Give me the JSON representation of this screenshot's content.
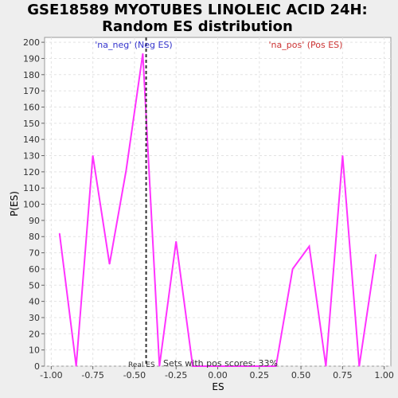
{
  "chart_data": {
    "type": "line",
    "title_line1": "GSE18589 MYOTUBES LINOLEIC ACID 24H:",
    "title_line2": "Random ES distribution",
    "xlabel": "ES",
    "ylabel": "P(ES)",
    "xlim": [
      -1.04,
      1.04
    ],
    "ylim": [
      0,
      203
    ],
    "xticks": [
      "-1.00",
      "-0.75",
      "-0.50",
      "-0.25",
      "0.00",
      "0.25",
      "0.50",
      "0.75",
      "1.00"
    ],
    "xtick_values": [
      -1.0,
      -0.75,
      -0.5,
      -0.25,
      0.0,
      0.25,
      0.5,
      0.75,
      1.0
    ],
    "yticks": [
      0,
      10,
      20,
      30,
      40,
      50,
      60,
      70,
      80,
      90,
      100,
      110,
      120,
      130,
      140,
      150,
      160,
      170,
      180,
      190,
      200
    ],
    "grid": true,
    "series": [
      {
        "color": "#ff33ff",
        "x": [
          -0.95,
          -0.85,
          -0.75,
          -0.65,
          -0.55,
          -0.45,
          -0.35,
          -0.25,
          -0.15,
          -0.05,
          0.05,
          0.15,
          0.25,
          0.35,
          0.45,
          0.55,
          0.65,
          0.75,
          0.85,
          0.95
        ],
        "y": [
          82,
          0,
          130,
          63,
          121,
          193,
          0,
          77,
          0,
          0,
          0,
          0,
          0,
          0,
          60,
          74,
          0,
          130,
          0,
          69
        ]
      }
    ],
    "real_es": -0.43,
    "annotations": {
      "neg": "'na_neg' (Neg ES)",
      "pos": "'na_pos' (Pos ES)",
      "real_es": "Real ES",
      "sets_pos": "Sets with pos scores: 33%"
    },
    "colors": {
      "neg": "#3333cc",
      "pos": "#cc3333",
      "line": "#ff33ff"
    }
  }
}
